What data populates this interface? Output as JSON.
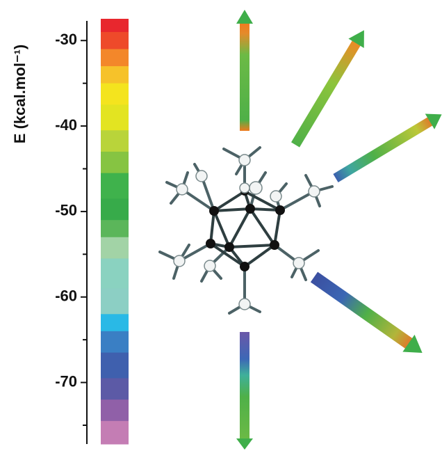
{
  "chart_data": {
    "type": "colorbar",
    "ylabel": "E (kcal.mol⁻¹)",
    "ylim": [
      -77.2,
      -27.7
    ],
    "yticks": [
      -30,
      -40,
      -50,
      -60,
      -70
    ],
    "minor_yticks": [
      -35,
      -45,
      -55,
      -65,
      -75
    ],
    "colormap": [
      {
        "value": -28,
        "color": "#e8272e"
      },
      {
        "value": -30,
        "color": "#ee4a2a"
      },
      {
        "value": -32,
        "color": "#f3872a"
      },
      {
        "value": -34,
        "color": "#f6c22a"
      },
      {
        "value": -36,
        "color": "#f4e41e"
      },
      {
        "value": -39,
        "color": "#e3e421"
      },
      {
        "value": -42,
        "color": "#b9d43a"
      },
      {
        "value": -44,
        "color": "#86c442"
      },
      {
        "value": -47,
        "color": "#3fb24c"
      },
      {
        "value": -50,
        "color": "#37ab4a"
      },
      {
        "value": -52,
        "color": "#5bb65a"
      },
      {
        "value": -54,
        "color": "#a2d3a6"
      },
      {
        "value": -57,
        "color": "#8ad2c0"
      },
      {
        "value": -61,
        "color": "#8ccfc4"
      },
      {
        "value": -63,
        "color": "#29b9e6"
      },
      {
        "value": -65,
        "color": "#3a7fc4"
      },
      {
        "value": -68,
        "color": "#3f60ae"
      },
      {
        "value": -71,
        "color": "#5c5aa6"
      },
      {
        "value": -73,
        "color": "#9060a8"
      },
      {
        "value": -76,
        "color": "#c47db4"
      }
    ]
  }
}
